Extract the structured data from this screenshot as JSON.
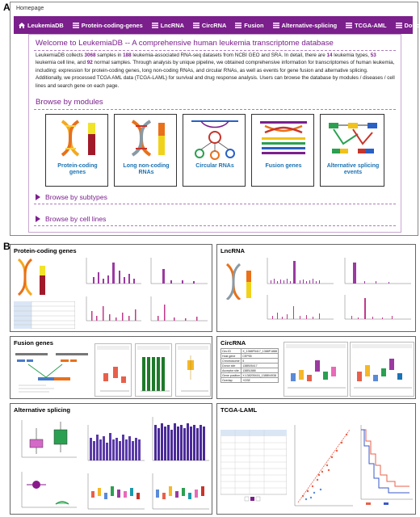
{
  "panel_a_label": "A",
  "panel_b_label": "B",
  "homepage_label": "Homepage",
  "nav": [
    {
      "label": "LeukemiaDB",
      "icon": "home-icon"
    },
    {
      "label": "Protein-coding-genes",
      "icon": "list-icon"
    },
    {
      "label": "LncRNA",
      "icon": "list-icon"
    },
    {
      "label": "CircRNA",
      "icon": "list-icon"
    },
    {
      "label": "Fusion",
      "icon": "list-icon"
    },
    {
      "label": "Alternative-splicing",
      "icon": "list-icon"
    },
    {
      "label": "TCGA-AML",
      "icon": "list-icon"
    },
    {
      "label": "Doucument",
      "icon": "list-icon"
    }
  ],
  "welcome_title": "Welcome to LeukemiaDB -- A comprehensive human leukemia transcriptome database",
  "intro": {
    "t1": "LeukemiaDB collects ",
    "samples": "3068",
    "t2": " samples in ",
    "datasets": "188",
    "t3": " leukemia-associated RNA-seq datasets from NCBI GEO and SRA. In detail, there are ",
    "types": "14",
    "t4": " leukemia types, ",
    "cell_lines": "53",
    "t5": " leukemia cell line, and ",
    "normal": "92",
    "t6": " normal samples. Through analysis by unique pipeline, we obtained comprehensive information for transcriptomes of human leukemia, including: expression for protein-coding genes, long non-coding RNAs, and circular RNAs, as well as events for gene fusion and alternative splicing. Additionally, we processed TCGA AML data (TCGA-LAML) for survival and drug response analysis. Users can browse the database by modules / diseases / cell lines and search gene on each page."
  },
  "browse_modules_title": "Browse by modules",
  "modules": [
    {
      "label": "Protein-coding genes"
    },
    {
      "label": "Long non-coding RNAs"
    },
    {
      "label": "Circular RNAs"
    },
    {
      "label": "Fusion genes"
    },
    {
      "label": "Alternative splicing events"
    }
  ],
  "browse_subtypes": "Browse by subtypes",
  "browse_cell_lines": "Browse by cell lines",
  "sections": {
    "protein": "Protein-coding genes",
    "lncrna": "LncRNA",
    "fusion": "Fusion genes",
    "circrna": "CircRNA",
    "splicing": "Alternative splicing",
    "tcga": "TCGA-LAML"
  },
  "circ_table": [
    [
      "Circ ID",
      "X_1388F5417_1388F1888"
    ],
    [
      "Host gene",
      "CEP55"
    ],
    [
      "Chromosome",
      "5"
    ],
    [
      "Donor site",
      "138B05417"
    ],
    [
      "Acceptor site",
      "138B1888"
    ],
    [
      "Gene position",
      "X:138205416_138B04938"
    ],
    [
      "Overlap",
      "+GSE"
    ]
  ],
  "colors": {
    "brand": "#7b1f8c",
    "link": "#1b73b3"
  }
}
